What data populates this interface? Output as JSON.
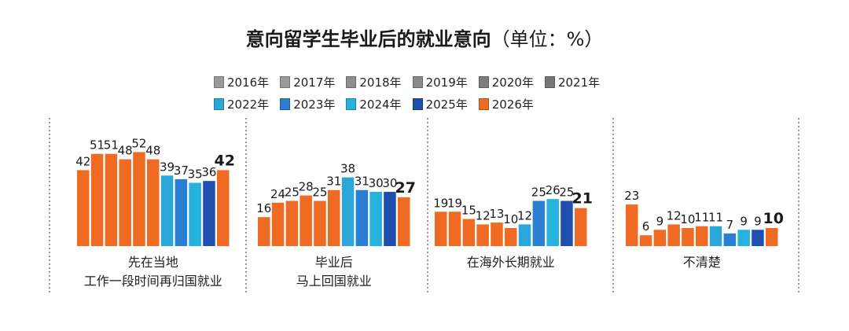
{
  "chart_data": {
    "type": "bar",
    "title": "意向留学生毕业后的就业意向",
    "unit": "（单位：%）",
    "legend": [
      "2016年",
      "2017年",
      "2018年",
      "2019年",
      "2020年",
      "2021年",
      "2022年",
      "2023年",
      "2024年",
      "2025年",
      "2026年"
    ],
    "year_colors": [
      "#9a9a9a",
      "#9a9a9a",
      "#8e8e8e",
      "#8a8a8a",
      "#7e7e7e",
      "#767676",
      "#2aa6d9",
      "#2a7fd3",
      "#27b1dd",
      "#1f4fae",
      "#ef6a22"
    ],
    "bar_colors": {
      "2016年": "#ef6a22",
      "2017年": "#ef6a22",
      "2018年": "#ef6a22",
      "2019年": "#ef6a22",
      "2020年": "#ef6a22",
      "2021年": "#ef6a22",
      "2022年": "#2aa6d9",
      "2023年": "#2a7fd3",
      "2024年": "#27b1dd",
      "2025年": "#1f4fae",
      "2026年": "#ef6a22"
    },
    "groups": [
      {
        "label_lines": [
          "先在当地",
          "工作一段时间再归国就业"
        ],
        "values": [
          42,
          51,
          51,
          48,
          52,
          48,
          39,
          37,
          35,
          36,
          42
        ]
      },
      {
        "label_lines": [
          "毕业后",
          "马上回国就业"
        ],
        "values": [
          16,
          24,
          25,
          28,
          25,
          31,
          38,
          31,
          30,
          30,
          27
        ]
      },
      {
        "label_lines": [
          "在海外长期就业"
        ],
        "values": [
          19,
          19,
          15,
          12,
          13,
          10,
          12,
          25,
          26,
          25,
          21
        ]
      },
      {
        "label_lines": [
          "不清楚"
        ],
        "values": [
          23,
          6,
          9,
          12,
          10,
          11,
          11,
          7,
          9,
          9,
          10
        ]
      }
    ],
    "highlight_last": true
  }
}
